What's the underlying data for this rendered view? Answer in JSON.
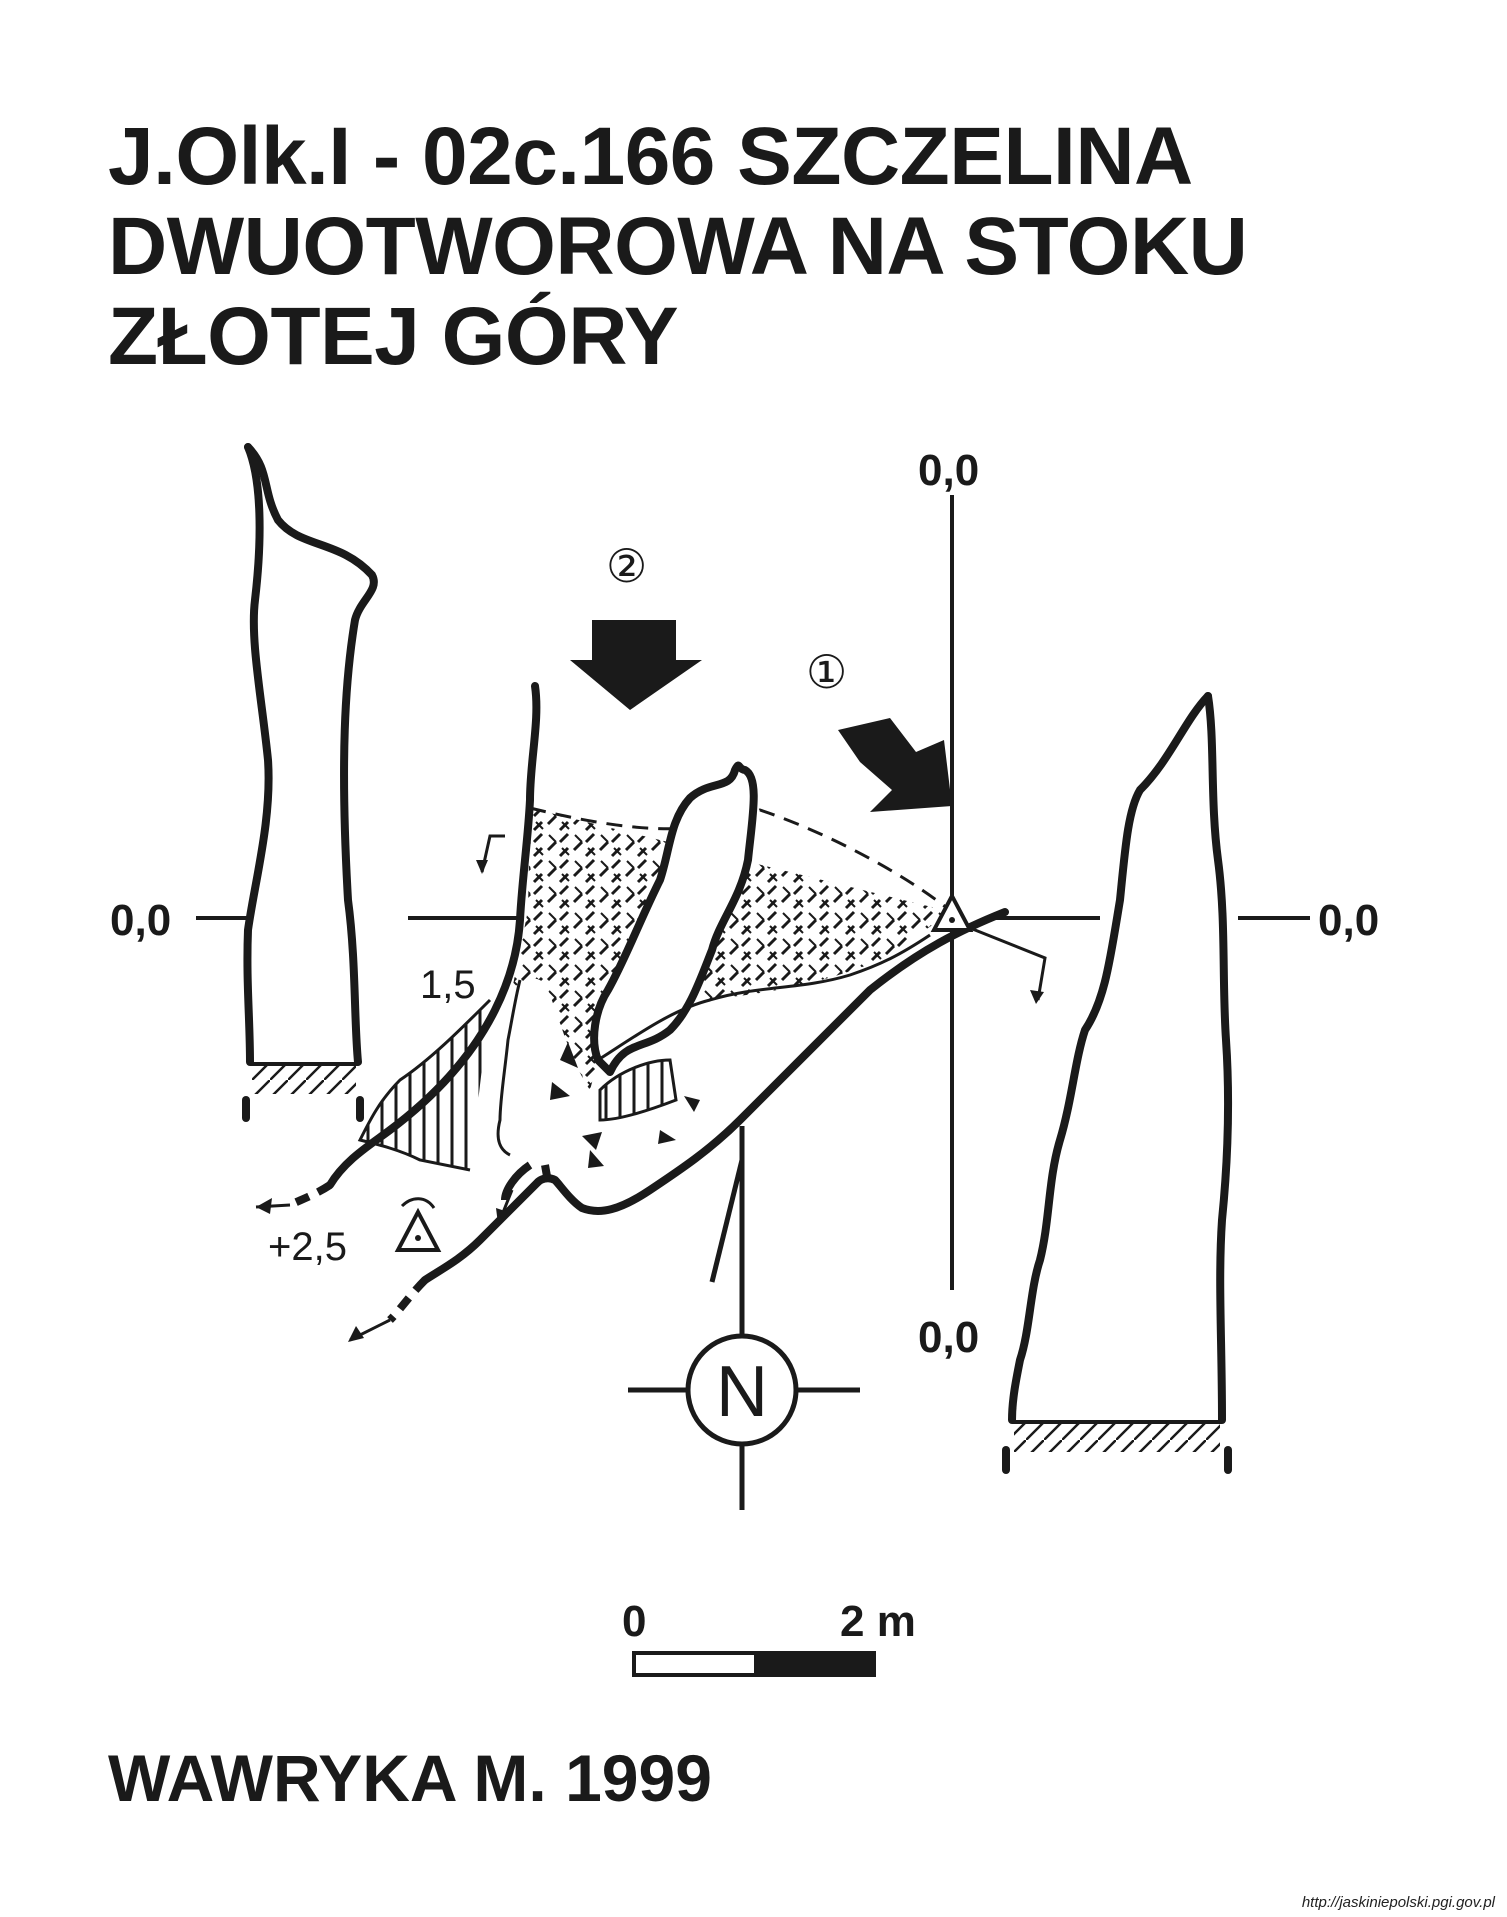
{
  "title": {
    "line1": "J.Olk.I - 02c.166  SZCZELINA",
    "line2": "DWUOTWOROWA NA STOKU",
    "line3": "ZŁOTEJ GÓRY"
  },
  "section_labels": {
    "left_level": "0,0",
    "right_level": "0,0",
    "top_level": "0,0",
    "bottom_level": "0,0"
  },
  "entrances": {
    "entrance_1": "①",
    "entrance_2": "②"
  },
  "heights": {
    "h1": "1,5",
    "h2": "+2,5"
  },
  "north": "N",
  "scale_bar": {
    "start_label": "0",
    "end_label": "2 m"
  },
  "author": "WAWRYKA M. 1999",
  "source": "http://jaskiniepolski.pgi.gov.pl"
}
